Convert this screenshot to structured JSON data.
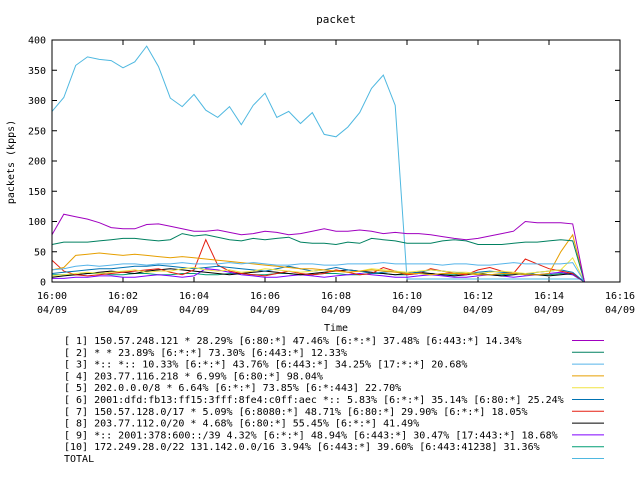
{
  "chart_data": {
    "type": "line",
    "title": "packet",
    "xlabel": "Time",
    "ylabel": "packets (kpps)",
    "ylim": [
      0,
      400
    ],
    "xlim": [
      "16:00",
      "16:16"
    ],
    "yticks": [
      0,
      50,
      100,
      150,
      200,
      250,
      300,
      350,
      400
    ],
    "xticks": [
      {
        "time": "16:00",
        "date": "04/09"
      },
      {
        "time": "16:02",
        "date": "04/09"
      },
      {
        "time": "16:04",
        "date": "04/09"
      },
      {
        "time": "16:06",
        "date": "04/09"
      },
      {
        "time": "16:08",
        "date": "04/09"
      },
      {
        "time": "16:10",
        "date": "04/09"
      },
      {
        "time": "16:12",
        "date": "04/09"
      },
      {
        "time": "16:14",
        "date": "04/09"
      },
      {
        "time": "16:16",
        "date": "04/09"
      }
    ],
    "x": [
      "16:00:00",
      "16:00:20",
      "16:00:40",
      "16:01:00",
      "16:01:20",
      "16:01:40",
      "16:02:00",
      "16:02:20",
      "16:02:40",
      "16:03:00",
      "16:03:20",
      "16:03:40",
      "16:04:00",
      "16:04:20",
      "16:04:40",
      "16:05:00",
      "16:05:20",
      "16:05:40",
      "16:06:00",
      "16:06:20",
      "16:06:40",
      "16:07:00",
      "16:07:20",
      "16:07:40",
      "16:08:00",
      "16:08:20",
      "16:08:40",
      "16:09:00",
      "16:09:20",
      "16:09:40",
      "16:10:00",
      "16:10:20",
      "16:10:40",
      "16:11:00",
      "16:11:20",
      "16:11:40",
      "16:12:00",
      "16:12:20",
      "16:12:40",
      "16:13:00",
      "16:13:20",
      "16:13:40",
      "16:14:00",
      "16:14:20",
      "16:14:40",
      "16:15:00"
    ],
    "series": [
      {
        "name": "[ 1] 150.57.248.121 * 28.29%  [6:80:*] 47.46% [6:*:*] 37.48% [6:443:*] 14.34%",
        "color": "#a000c0",
        "values": [
          78,
          112,
          108,
          104,
          98,
          90,
          88,
          88,
          95,
          96,
          92,
          88,
          84,
          84,
          86,
          82,
          78,
          80,
          84,
          82,
          78,
          80,
          84,
          88,
          84,
          84,
          86,
          84,
          80,
          82,
          80,
          80,
          78,
          75,
          72,
          70,
          72,
          76,
          80,
          84,
          100,
          98,
          98,
          98,
          96,
          0
        ]
      },
      {
        "name": "[ 2] * * 23.89%  [6:*:*] 73.30% [6:443:*] 12.33%",
        "color": "#008060",
        "values": [
          62,
          66,
          66,
          66,
          68,
          70,
          72,
          72,
          70,
          68,
          70,
          80,
          76,
          78,
          74,
          70,
          68,
          72,
          70,
          72,
          74,
          66,
          64,
          64,
          62,
          66,
          64,
          72,
          70,
          68,
          64,
          64,
          64,
          68,
          70,
          68,
          62,
          62,
          62,
          64,
          66,
          66,
          68,
          70,
          68,
          0
        ]
      },
      {
        "name": "[ 3] *:: *:: 10.33%  [6:*:*] 43.76% [6:443:*] 34.25% [17:*:*] 20.68%",
        "color": "#56b4e9",
        "values": [
          20,
          22,
          26,
          28,
          26,
          28,
          30,
          30,
          28,
          30,
          30,
          32,
          30,
          30,
          30,
          32,
          30,
          32,
          30,
          28,
          28,
          30,
          30,
          28,
          28,
          30,
          30,
          30,
          32,
          30,
          30,
          30,
          30,
          28,
          30,
          30,
          28,
          28,
          30,
          32,
          30,
          30,
          30,
          30,
          32,
          0
        ]
      },
      {
        "name": "[ 4] 203.77.116.218 * 6.99%  [6:80:*] 98.04%",
        "color": "#e69f00",
        "values": [
          20,
          24,
          44,
          46,
          48,
          46,
          44,
          46,
          44,
          42,
          40,
          42,
          40,
          38,
          36,
          34,
          32,
          30,
          28,
          26,
          24,
          22,
          22,
          20,
          18,
          16,
          18,
          20,
          18,
          16,
          14,
          14,
          12,
          14,
          14,
          14,
          12,
          12,
          14,
          14,
          12,
          12,
          14,
          50,
          78,
          0
        ]
      },
      {
        "name": "[ 5] 202.0.0.0/8 * 6.64%  [6:*:*] 73.85% [6:*:443] 22.70%",
        "color": "#f0e442",
        "values": [
          10,
          12,
          14,
          16,
          14,
          16,
          18,
          20,
          16,
          18,
          18,
          22,
          24,
          20,
          18,
          20,
          16,
          18,
          22,
          20,
          18,
          16,
          18,
          20,
          18,
          16,
          18,
          22,
          20,
          18,
          16,
          18,
          20,
          18,
          16,
          16,
          14,
          16,
          18,
          16,
          14,
          16,
          18,
          20,
          40,
          0
        ]
      },
      {
        "name": "[ 6] 2001:dfd:fb13:ff15:3fff:8fe4:c0ff:aec *:: 5.83%  [6:*:*] 35.14% [6:80:*] 25.24%",
        "color": "#0072b2",
        "values": [
          14,
          16,
          18,
          20,
          22,
          22,
          24,
          26,
          26,
          28,
          26,
          24,
          22,
          24,
          26,
          24,
          22,
          20,
          18,
          22,
          26,
          22,
          18,
          20,
          24,
          20,
          18,
          14,
          16,
          18,
          14,
          16,
          20,
          18,
          16,
          14,
          16,
          18,
          16,
          14,
          12,
          16,
          18,
          20,
          16,
          0
        ]
      },
      {
        "name": "[ 7] 150.57.128.0/17 * 5.09%  [6:8080:*] 48.71% [6:80:*] 29.90% [6:*:*] 18.05%",
        "color": "#e51e10",
        "values": [
          36,
          18,
          12,
          10,
          12,
          14,
          16,
          18,
          20,
          22,
          16,
          12,
          20,
          70,
          28,
          18,
          14,
          12,
          10,
          14,
          18,
          14,
          12,
          14,
          20,
          16,
          12,
          14,
          24,
          18,
          12,
          14,
          22,
          18,
          14,
          12,
          20,
          24,
          18,
          14,
          38,
          30,
          22,
          18,
          14,
          0
        ]
      },
      {
        "name": "[ 8] 203.77.112.0/20 * 4.68%  [6:80:*] 55.45% [6:*:*] 41.49%",
        "color": "#000000",
        "values": [
          8,
          10,
          12,
          14,
          16,
          18,
          16,
          14,
          18,
          20,
          22,
          20,
          18,
          16,
          14,
          12,
          14,
          16,
          18,
          16,
          14,
          12,
          14,
          16,
          18,
          20,
          18,
          16,
          14,
          12,
          14,
          16,
          14,
          12,
          10,
          12,
          14,
          12,
          10,
          12,
          14,
          12,
          10,
          12,
          14,
          0
        ]
      },
      {
        "name": "[ 9] *:: 2001:378:600::/39 4.32%  [6:*:*] 48.94% [6:443:*] 30.47% [17:443:*] 18.68%",
        "color": "#7f00ff",
        "values": [
          6,
          6,
          8,
          8,
          10,
          10,
          8,
          8,
          10,
          12,
          10,
          8,
          10,
          22,
          20,
          16,
          12,
          10,
          8,
          8,
          10,
          12,
          10,
          8,
          10,
          12,
          14,
          12,
          10,
          8,
          8,
          10,
          12,
          10,
          8,
          8,
          10,
          12,
          10,
          8,
          10,
          12,
          14,
          16,
          12,
          0
        ]
      },
      {
        "name": "[10] 172.249.28.0/22 131.142.0.0/16 3.94%  [6:443:*] 39.60% [6:443:41238] 31.36%",
        "color": "#009e73",
        "values": [
          12,
          12,
          12,
          14,
          14,
          12,
          12,
          14,
          14,
          12,
          12,
          14,
          14,
          12,
          12,
          14,
          14,
          12,
          12,
          14,
          14,
          12,
          12,
          14,
          14,
          12,
          12,
          14,
          14,
          12,
          12,
          14,
          14,
          12,
          12,
          14,
          14,
          12,
          12,
          14,
          14,
          12,
          12,
          14,
          12,
          0
        ]
      },
      {
        "name": "TOTAL",
        "color": "#4fb8e0",
        "values": [
          282,
          305,
          358,
          372,
          368,
          366,
          354,
          364,
          390,
          356,
          304,
          290,
          310,
          284,
          272,
          290,
          260,
          292,
          312,
          272,
          282,
          262,
          280,
          244,
          240,
          256,
          280,
          320,
          342,
          292,
          5,
          5,
          5,
          5,
          5,
          5,
          5,
          5,
          5,
          5,
          5,
          5,
          5,
          5,
          5,
          5
        ]
      }
    ]
  }
}
